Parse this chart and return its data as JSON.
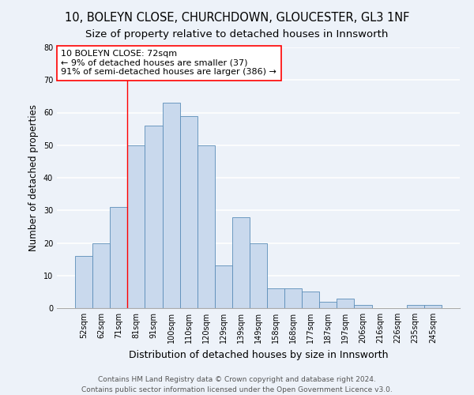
{
  "title_line1": "10, BOLEYN CLOSE, CHURCHDOWN, GLOUCESTER, GL3 1NF",
  "title_line2": "Size of property relative to detached houses in Innsworth",
  "xlabel": "Distribution of detached houses by size in Innsworth",
  "ylabel": "Number of detached properties",
  "bar_color": "#c9d9ed",
  "bar_edge_color": "#5b8db8",
  "categories": [
    "52sqm",
    "62sqm",
    "71sqm",
    "81sqm",
    "91sqm",
    "100sqm",
    "110sqm",
    "120sqm",
    "129sqm",
    "139sqm",
    "149sqm",
    "158sqm",
    "168sqm",
    "177sqm",
    "187sqm",
    "197sqm",
    "206sqm",
    "216sqm",
    "226sqm",
    "235sqm",
    "245sqm"
  ],
  "values": [
    16,
    20,
    31,
    50,
    56,
    63,
    59,
    50,
    13,
    28,
    20,
    6,
    6,
    5,
    2,
    3,
    1,
    0,
    0,
    1,
    1
  ],
  "ylim": [
    0,
    80
  ],
  "yticks": [
    0,
    10,
    20,
    30,
    40,
    50,
    60,
    70,
    80
  ],
  "annotation_line1": "10 BOLEYN CLOSE: 72sqm",
  "annotation_line2": "← 9% of detached houses are smaller (37)",
  "annotation_line3": "91% of semi-detached houses are larger (386) →",
  "vline_x_index": 2.5,
  "footer_line1": "Contains HM Land Registry data © Crown copyright and database right 2024.",
  "footer_line2": "Contains public sector information licensed under the Open Government Licence v3.0.",
  "background_color": "#edf2f9",
  "grid_color": "#ffffff",
  "title_fontsize": 10.5,
  "subtitle_fontsize": 9.5,
  "annotation_fontsize": 8,
  "tick_fontsize": 7,
  "ylabel_fontsize": 8.5,
  "xlabel_fontsize": 9,
  "footer_fontsize": 6.5
}
